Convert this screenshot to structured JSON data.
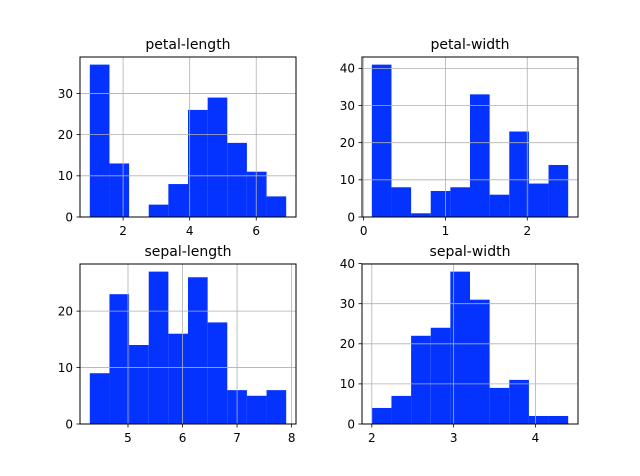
{
  "figure": {
    "background": "#ffffff",
    "bar_color": "#0433ff",
    "grid_color": "#b0b0b0"
  },
  "chart_data": [
    {
      "type": "bar",
      "title": "petal-length",
      "bin_edges": [
        1.0,
        1.59,
        2.18,
        2.77,
        3.36,
        3.95,
        4.54,
        5.13,
        5.72,
        6.31,
        6.9
      ],
      "values": [
        37,
        13,
        0,
        3,
        8,
        26,
        29,
        18,
        11,
        5
      ],
      "xlim": [
        0.705,
        7.195
      ],
      "ylim": [
        0,
        38.85
      ],
      "xticks": [
        2,
        4,
        6
      ],
      "yticks": [
        0,
        10,
        20,
        30
      ],
      "grid": true
    },
    {
      "type": "bar",
      "title": "petal-width",
      "bin_edges": [
        0.1,
        0.34,
        0.58,
        0.82,
        1.06,
        1.3,
        1.54,
        1.78,
        2.02,
        2.26,
        2.5
      ],
      "values": [
        41,
        8,
        1,
        7,
        8,
        33,
        6,
        23,
        9,
        14
      ],
      "xlim": [
        -0.02,
        2.62
      ],
      "ylim": [
        0,
        43.05
      ],
      "xticks": [
        0,
        1,
        2
      ],
      "yticks": [
        0,
        10,
        20,
        30,
        40
      ],
      "grid": true
    },
    {
      "type": "bar",
      "title": "sepal-length",
      "bin_edges": [
        4.3,
        4.66,
        5.02,
        5.38,
        5.74,
        6.1,
        6.46,
        6.82,
        7.18,
        7.54,
        7.9
      ],
      "values": [
        9,
        23,
        14,
        27,
        16,
        26,
        18,
        6,
        5,
        6
      ],
      "xlim": [
        4.12,
        8.08
      ],
      "ylim": [
        0,
        28.35
      ],
      "xticks": [
        5,
        6,
        7,
        8
      ],
      "yticks": [
        0,
        10,
        20
      ],
      "grid": true
    },
    {
      "type": "bar",
      "title": "sepal-width",
      "bin_edges": [
        2.0,
        2.24,
        2.48,
        2.72,
        2.96,
        3.2,
        3.44,
        3.68,
        3.92,
        4.16,
        4.4
      ],
      "values": [
        4,
        7,
        22,
        24,
        38,
        31,
        9,
        11,
        2,
        2
      ],
      "xlim": [
        1.88,
        4.52
      ],
      "ylim": [
        0,
        39.9
      ],
      "xticks": [
        2,
        3,
        4
      ],
      "yticks": [
        0,
        10,
        20,
        30,
        40
      ],
      "grid": true
    }
  ]
}
